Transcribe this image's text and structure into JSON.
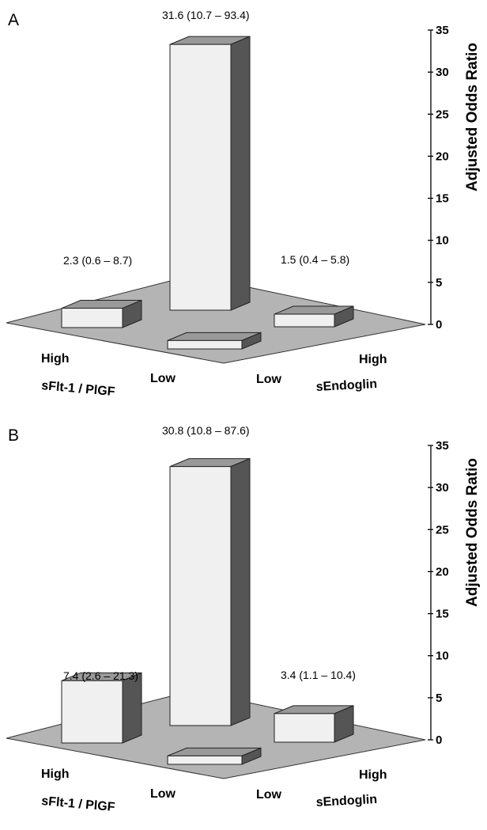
{
  "chart_data": [
    {
      "panel": "A",
      "type": "bar",
      "subtype": "3d-bar-2x2",
      "ylabel": "Adjusted Odds Ratio",
      "ylim": [
        0,
        35
      ],
      "yticks": [
        "0",
        "5",
        "10",
        "15",
        "20",
        "25",
        "30",
        "35"
      ],
      "x_axis_label": "sFlt-1 / PlGF",
      "z_axis_label": "sEndoglin",
      "x_categories": [
        "High",
        "Low"
      ],
      "z_categories": [
        "Low",
        "High"
      ],
      "bars": [
        {
          "x": "High",
          "z": "Low",
          "value": 2.3,
          "label": "2.3 (0.6 – 8.7)"
        },
        {
          "x": "Low",
          "z": "High",
          "value": 31.6,
          "label": "31.6 (10.7 – 93.4)"
        },
        {
          "x": "Low",
          "z": "Low",
          "value": 1.0,
          "label": ""
        },
        {
          "x": "High",
          "z": "High",
          "value": 1.5,
          "label": "1.5 (0.4 – 5.8)"
        }
      ]
    },
    {
      "panel": "B",
      "type": "bar",
      "subtype": "3d-bar-2x2",
      "ylabel": "Adjusted Odds Ratio",
      "ylim": [
        0,
        35
      ],
      "yticks": [
        "0",
        "5",
        "10",
        "15",
        "20",
        "25",
        "30",
        "35"
      ],
      "x_axis_label": "sFlt-1 / PlGF",
      "z_axis_label": "sEndoglin",
      "x_categories": [
        "High",
        "Low"
      ],
      "z_categories": [
        "Low",
        "High"
      ],
      "bars": [
        {
          "x": "High",
          "z": "Low",
          "value": 7.4,
          "label": "7.4 (2.6 – 21.3)"
        },
        {
          "x": "Low",
          "z": "High",
          "value": 30.8,
          "label": "30.8 (10.8 – 87.6)"
        },
        {
          "x": "Low",
          "z": "Low",
          "value": 1.0,
          "label": ""
        },
        {
          "x": "High",
          "z": "High",
          "value": 3.4,
          "label": "3.4 (1.1 – 10.4)"
        }
      ]
    }
  ],
  "colors": {
    "floor": "#b4b4b4",
    "bar_front": "#f0f0f0",
    "bar_side": "#555555",
    "bar_top": "#999999",
    "outline": "#222222"
  }
}
